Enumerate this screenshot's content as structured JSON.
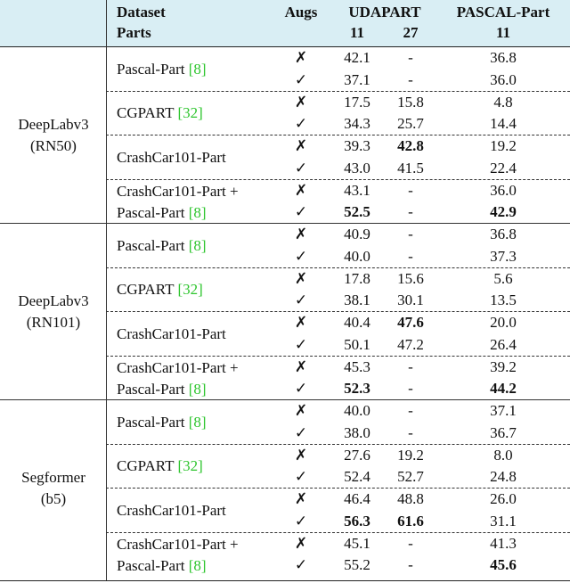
{
  "header": {
    "col_dataset": "Dataset",
    "col_parts": "Parts",
    "col_augs": "Augs",
    "col_udapart": "UDAPART",
    "col_udapart_11": "11",
    "col_udapart_27": "27",
    "col_pascal": "PASCAL-Part",
    "col_pascal_11": "11",
    "header_bg": "#d9eef4"
  },
  "marks": {
    "cross": "✗",
    "check": "✓"
  },
  "models": [
    {
      "name_line1": "DeepLabv3",
      "name_line2": "(RN50)",
      "groups": [
        {
          "dataset_line1": "Pascal-Part",
          "cite1": "[8]",
          "dataset_line2": "",
          "cite2": "",
          "rows": [
            {
              "aug": "✗",
              "u11": "42.1",
              "u11_bold": false,
              "u27": "-",
              "u27_bold": false,
              "p11": "36.8",
              "p11_bold": false
            },
            {
              "aug": "✓",
              "u11": "37.1",
              "u11_bold": false,
              "u27": "-",
              "u27_bold": false,
              "p11": "36.0",
              "p11_bold": false
            }
          ]
        },
        {
          "dataset_line1": "CGPART",
          "cite1": "[32]",
          "dataset_line2": "",
          "cite2": "",
          "rows": [
            {
              "aug": "✗",
              "u11": "17.5",
              "u11_bold": false,
              "u27": "15.8",
              "u27_bold": false,
              "p11": "4.8",
              "p11_bold": false
            },
            {
              "aug": "✓",
              "u11": "34.3",
              "u11_bold": false,
              "u27": "25.7",
              "u27_bold": false,
              "p11": "14.4",
              "p11_bold": false
            }
          ]
        },
        {
          "dataset_line1": "CrashCar101-Part",
          "cite1": "",
          "dataset_line2": "",
          "cite2": "",
          "rows": [
            {
              "aug": "✗",
              "u11": "39.3",
              "u11_bold": false,
              "u27": "42.8",
              "u27_bold": true,
              "p11": "19.2",
              "p11_bold": false
            },
            {
              "aug": "✓",
              "u11": "43.0",
              "u11_bold": false,
              "u27": "41.5",
              "u27_bold": false,
              "p11": "22.4",
              "p11_bold": false
            }
          ]
        },
        {
          "dataset_line1": "CrashCar101-Part +",
          "cite1": "",
          "dataset_line2": "Pascal-Part",
          "cite2": "[8]",
          "rows": [
            {
              "aug": "✗",
              "u11": "43.1",
              "u11_bold": false,
              "u27": "-",
              "u27_bold": false,
              "p11": "36.0",
              "p11_bold": false
            },
            {
              "aug": "✓",
              "u11": "52.5",
              "u11_bold": true,
              "u27": "-",
              "u27_bold": false,
              "p11": "42.9",
              "p11_bold": true
            }
          ]
        }
      ]
    },
    {
      "name_line1": "DeepLabv3",
      "name_line2": "(RN101)",
      "groups": [
        {
          "dataset_line1": "Pascal-Part",
          "cite1": "[8]",
          "dataset_line2": "",
          "cite2": "",
          "rows": [
            {
              "aug": "✗",
              "u11": "40.9",
              "u11_bold": false,
              "u27": "-",
              "u27_bold": false,
              "p11": "36.8",
              "p11_bold": false
            },
            {
              "aug": "✓",
              "u11": "40.0",
              "u11_bold": false,
              "u27": "-",
              "u27_bold": false,
              "p11": "37.3",
              "p11_bold": false
            }
          ]
        },
        {
          "dataset_line1": "CGPART",
          "cite1": "[32]",
          "dataset_line2": "",
          "cite2": "",
          "rows": [
            {
              "aug": "✗",
              "u11": "17.8",
              "u11_bold": false,
              "u27": "15.6",
              "u27_bold": false,
              "p11": "5.6",
              "p11_bold": false
            },
            {
              "aug": "✓",
              "u11": "38.1",
              "u11_bold": false,
              "u27": "30.1",
              "u27_bold": false,
              "p11": "13.5",
              "p11_bold": false
            }
          ]
        },
        {
          "dataset_line1": "CrashCar101-Part",
          "cite1": "",
          "dataset_line2": "",
          "cite2": "",
          "rows": [
            {
              "aug": "✗",
              "u11": "40.4",
              "u11_bold": false,
              "u27": "47.6",
              "u27_bold": true,
              "p11": "20.0",
              "p11_bold": false
            },
            {
              "aug": "✓",
              "u11": "50.1",
              "u11_bold": false,
              "u27": "47.2",
              "u27_bold": false,
              "p11": "26.4",
              "p11_bold": false
            }
          ]
        },
        {
          "dataset_line1": "CrashCar101-Part +",
          "cite1": "",
          "dataset_line2": "Pascal-Part",
          "cite2": "[8]",
          "rows": [
            {
              "aug": "✗",
              "u11": "45.3",
              "u11_bold": false,
              "u27": "-",
              "u27_bold": false,
              "p11": "39.2",
              "p11_bold": false
            },
            {
              "aug": "✓",
              "u11": "52.3",
              "u11_bold": true,
              "u27": "-",
              "u27_bold": false,
              "p11": "44.2",
              "p11_bold": true
            }
          ]
        }
      ]
    },
    {
      "name_line1": "Segformer",
      "name_line2": "(b5)",
      "groups": [
        {
          "dataset_line1": "Pascal-Part",
          "cite1": "[8]",
          "dataset_line2": "",
          "cite2": "",
          "rows": [
            {
              "aug": "✗",
              "u11": "40.0",
              "u11_bold": false,
              "u27": "-",
              "u27_bold": false,
              "p11": "37.1",
              "p11_bold": false
            },
            {
              "aug": "✓",
              "u11": "38.0",
              "u11_bold": false,
              "u27": "-",
              "u27_bold": false,
              "p11": "36.7",
              "p11_bold": false
            }
          ]
        },
        {
          "dataset_line1": "CGPART",
          "cite1": "[32]",
          "dataset_line2": "",
          "cite2": "",
          "rows": [
            {
              "aug": "✗",
              "u11": "27.6",
              "u11_bold": false,
              "u27": "19.2",
              "u27_bold": false,
              "p11": "8.0",
              "p11_bold": false
            },
            {
              "aug": "✓",
              "u11": "52.4",
              "u11_bold": false,
              "u27": "52.7",
              "u27_bold": false,
              "p11": "24.8",
              "p11_bold": false
            }
          ]
        },
        {
          "dataset_line1": "CrashCar101-Part",
          "cite1": "",
          "dataset_line2": "",
          "cite2": "",
          "rows": [
            {
              "aug": "✗",
              "u11": "46.4",
              "u11_bold": false,
              "u27": "48.8",
              "u27_bold": false,
              "p11": "26.0",
              "p11_bold": false
            },
            {
              "aug": "✓",
              "u11": "56.3",
              "u11_bold": true,
              "u27": "61.6",
              "u27_bold": true,
              "p11": "31.1",
              "p11_bold": false
            }
          ]
        },
        {
          "dataset_line1": "CrashCar101-Part +",
          "cite1": "",
          "dataset_line2": "Pascal-Part",
          "cite2": "[8]",
          "rows": [
            {
              "aug": "✗",
              "u11": "45.1",
              "u11_bold": false,
              "u27": "-",
              "u27_bold": false,
              "p11": "41.3",
              "p11_bold": false
            },
            {
              "aug": "✓",
              "u11": "55.2",
              "u11_bold": false,
              "u27": "-",
              "u27_bold": false,
              "p11": "45.6",
              "p11_bold": true
            }
          ]
        }
      ]
    }
  ]
}
